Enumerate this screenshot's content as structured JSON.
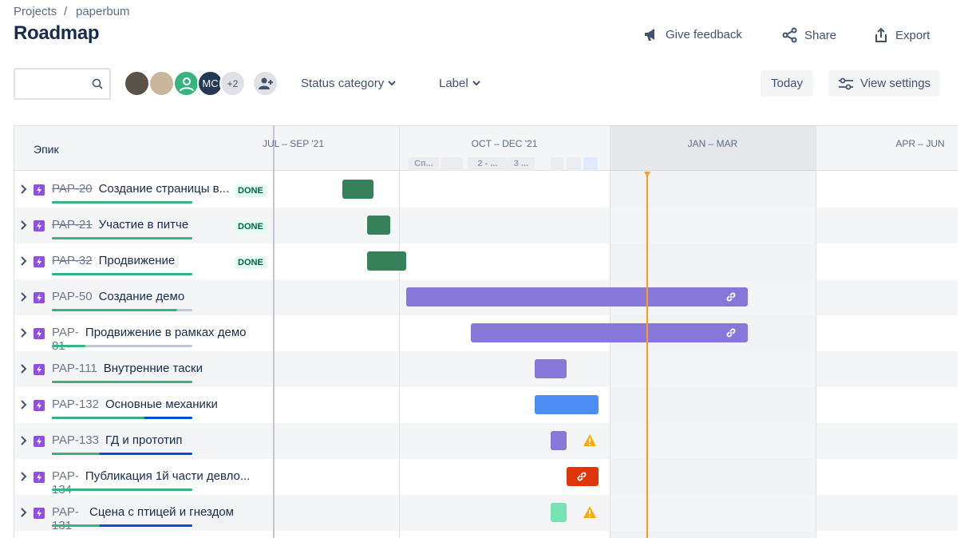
{
  "breadcrumbs": [
    "Projects",
    "paperbum"
  ],
  "title": "Roadmap",
  "actions": [
    "Give feedback",
    "Share",
    "Export"
  ],
  "avatars": {
    "initials": "MC",
    "more": "+2"
  },
  "filters": [
    "Status category",
    "Label"
  ],
  "buttons": [
    "Today",
    "View settings"
  ],
  "timeline": {
    "column_header": "Эпик",
    "quarters": [
      "JUL – SEP '21",
      "OCT – DEC '21",
      "JAN – MAR",
      "APR – JUN"
    ],
    "sprints": [
      "Сп...",
      "2 - ...",
      "3 ..."
    ]
  },
  "rows": [
    {
      "key": "PAP-20",
      "title": "Создание страницы в...",
      "status": "DONE"
    },
    {
      "key": "PAP-21",
      "title": "Участие в питче",
      "status": "DONE"
    },
    {
      "key": "PAP-32",
      "title": "Продвижение",
      "status": "DONE"
    },
    {
      "key": "PAP-50",
      "title": "Создание демо"
    },
    {
      "key": "PAP-81",
      "title": "Продвижение в рамках демо"
    },
    {
      "key": "PAP-111",
      "title": "Внутренние таски"
    },
    {
      "key": "PAP-132",
      "title": "Основные механики"
    },
    {
      "key": "PAP-133",
      "title": "ГД и прототип"
    },
    {
      "key": "PAP-134",
      "title": "Публикация 1й части девло..."
    },
    {
      "key": "PAP-131",
      "title": "Сцена с птицей и гнездом"
    }
  ]
}
